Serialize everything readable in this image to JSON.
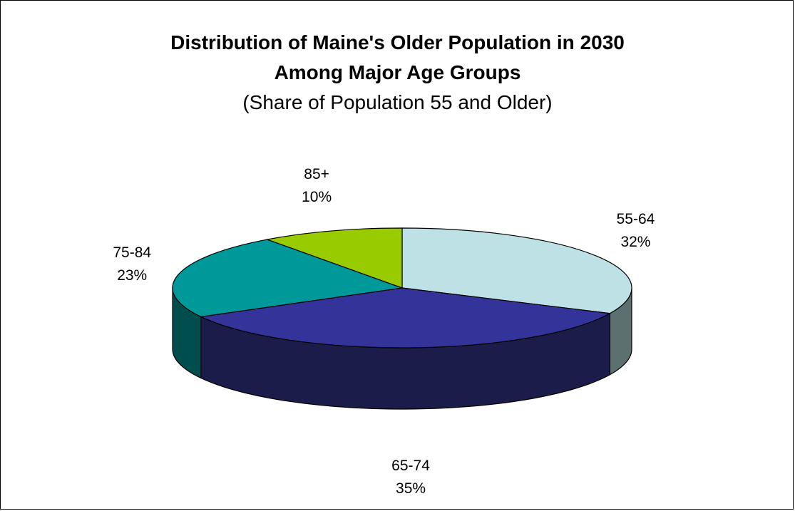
{
  "chart_data": {
    "type": "pie",
    "title": "Distribution of Maine's Older Population in 2030",
    "title_line2": "Among Major Age Groups",
    "subtitle": "(Share of Population 55 and Older)",
    "three_d": true,
    "slices": [
      {
        "label": "55-64",
        "value": 32,
        "display": "32%",
        "color": "#bde1e4",
        "side_color": "#5c7070"
      },
      {
        "label": "65-74",
        "value": 35,
        "display": "35%",
        "color": "#33339a",
        "side_color": "#1c1c4a"
      },
      {
        "label": "75-84",
        "value": 23,
        "display": "23%",
        "color": "#00999a",
        "side_color": "#004d4e"
      },
      {
        "label": "85+",
        "value": 10,
        "display": "10%",
        "color": "#99cc00",
        "side_color": "#4d6600"
      }
    ]
  }
}
